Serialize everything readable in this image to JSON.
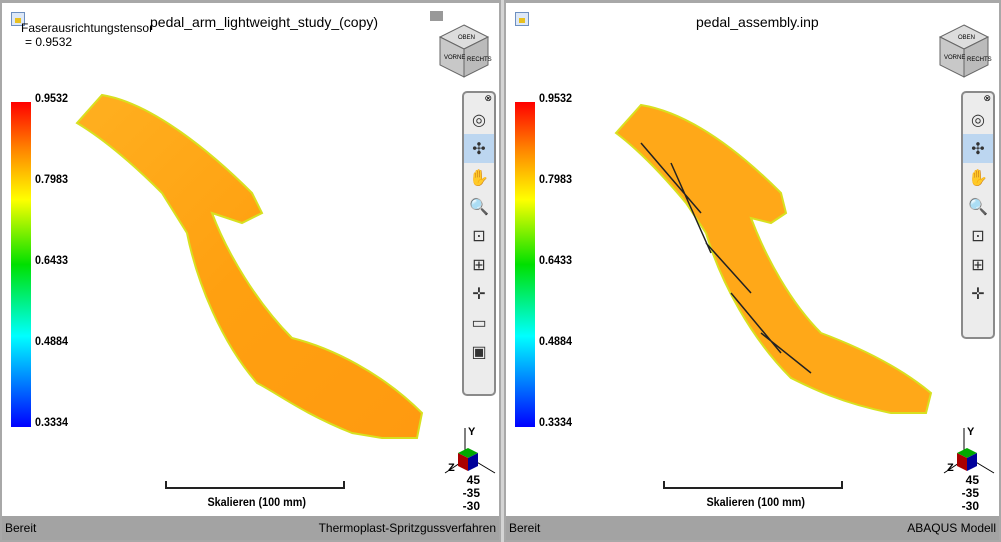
{
  "left": {
    "title": "pedal_arm_lightweight_study_(copy)",
    "tensor_label": "Faserausrichtungstensor",
    "tensor_value": "= 0.9532",
    "status_left": "Bereit",
    "status_right": "Thermoplast-Spritzgussverfahren"
  },
  "right": {
    "title": "pedal_assembly.inp",
    "status_left": "Bereit",
    "status_right": "ABAQUS Modell"
  },
  "legend": {
    "labels": [
      "0.9532",
      "0.7983",
      "0.6433",
      "0.4884",
      "0.3334"
    ]
  },
  "cube": {
    "top": "OBEN",
    "front": "VORNE",
    "right": "RECHTS"
  },
  "scale_label": "Skalieren (100 mm)",
  "axes": {
    "y": "Y",
    "z": "Z",
    "x": "X",
    "angles": [
      "45",
      "-35",
      "-30"
    ]
  },
  "toolbar_left": [
    [
      "steering-wheel-icon",
      "◎"
    ],
    [
      "orbit-icon",
      "✣"
    ],
    [
      "pan-hand-icon",
      "✋"
    ],
    [
      "zoom-icon",
      "🔍"
    ],
    [
      "zoom-window-icon",
      "⊡"
    ],
    [
      "zoom-extents-icon",
      "⊞"
    ],
    [
      "center-icon",
      "✛"
    ],
    [
      "measure-ruler-icon",
      "▭"
    ],
    [
      "camera-icon",
      "▣"
    ]
  ],
  "toolbar_right": [
    [
      "steering-wheel-icon",
      "◎"
    ],
    [
      "orbit-icon",
      "✣"
    ],
    [
      "pan-hand-icon",
      "✋"
    ],
    [
      "zoom-icon",
      "🔍"
    ],
    [
      "zoom-window-icon",
      "⊡"
    ],
    [
      "zoom-extents-icon",
      "⊞"
    ],
    [
      "center-icon",
      "✛"
    ]
  ]
}
